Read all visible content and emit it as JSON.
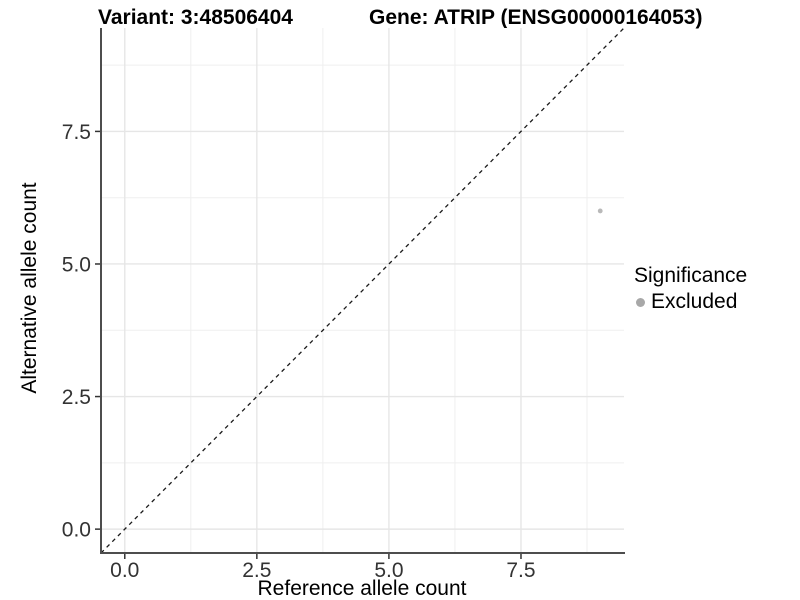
{
  "header": {
    "variant_title": "Variant: 3:48506404",
    "gene_title": "Gene: ATRIP (ENSG00000164053)"
  },
  "chart_data": {
    "type": "scatter",
    "variant_title": "Variant: 3:48506404",
    "gene_title": "Gene: ATRIP (ENSG00000164053)",
    "xlabel": "Reference allele count",
    "ylabel": "Alternative allele count",
    "xlim": [
      -0.45,
      9.45
    ],
    "ylim": [
      -0.45,
      9.45
    ],
    "xticks": [
      0,
      2.5,
      5,
      7.5
    ],
    "xtick_labels": [
      "0.0",
      "2.5",
      "5.0",
      "7.5"
    ],
    "yticks": [
      0,
      2.5,
      5,
      7.5
    ],
    "ytick_labels": [
      "0.0",
      "2.5",
      "5.0",
      "7.5"
    ],
    "minor_ticks": [
      1.25,
      3.75,
      6.25,
      8.75
    ],
    "grid": "major+minor",
    "identity_line": {
      "style": "dashed",
      "color": "#1a1a1a"
    },
    "series": [
      {
        "name": "Excluded",
        "color": "#b9b9b9",
        "points": [
          {
            "x": 9,
            "y": 6
          }
        ]
      }
    ],
    "legend": {
      "title": "Significance",
      "position": "right",
      "items": [
        {
          "label": "Excluded",
          "color": "#a8a8a8"
        }
      ]
    },
    "style": {
      "panel_background": "#ffffff",
      "grid_major_color": "#e6e6e6",
      "grid_minor_color": "#efefef",
      "axis_line_color": "#4d4d4d",
      "tick_color": "#333333",
      "tick_label_color": "#333333",
      "point_radius": 2.4
    }
  }
}
